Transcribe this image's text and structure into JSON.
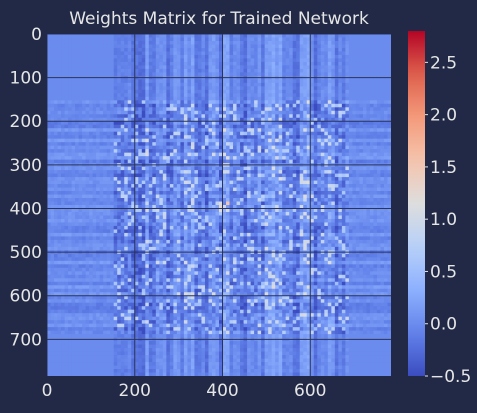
{
  "chart_data": {
    "type": "heatmap",
    "title": "Weights Matrix for Trained Network",
    "xlabel": "",
    "ylabel": "",
    "rows": 784,
    "cols": 784,
    "xlim": [
      0,
      784
    ],
    "ylim": [
      784,
      0
    ],
    "x_ticks": [
      0,
      200,
      400,
      600
    ],
    "y_ticks": [
      0,
      100,
      200,
      300,
      400,
      500,
      600,
      700
    ],
    "grid": true,
    "colormap": "coolwarm",
    "colorbar": {
      "vmin": -0.5,
      "vmax": 2.8,
      "ticks": [
        -0.5,
        0.0,
        0.5,
        1.0,
        1.5,
        2.0,
        2.5
      ],
      "tick_labels": [
        "−0.5",
        "0.0",
        "0.5",
        "1.0",
        "1.5",
        "2.0",
        "2.5"
      ]
    },
    "data_description": {
      "background_value": 0.0,
      "active_region_x": [
        150,
        690
      ],
      "active_region_y": [
        150,
        690
      ]
    }
  },
  "colors": {
    "background": "#212946",
    "text": "#e6e6e6",
    "grid": "#2a3459"
  }
}
